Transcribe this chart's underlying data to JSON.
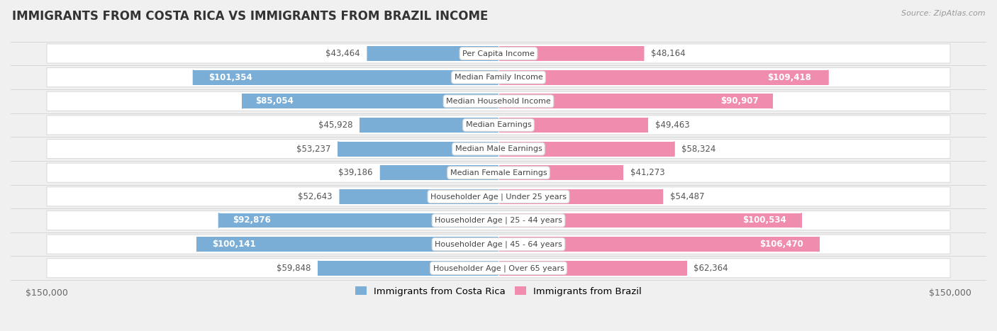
{
  "title": "IMMIGRANTS FROM COSTA RICA VS IMMIGRANTS FROM BRAZIL INCOME",
  "source": "Source: ZipAtlas.com",
  "categories": [
    "Per Capita Income",
    "Median Family Income",
    "Median Household Income",
    "Median Earnings",
    "Median Male Earnings",
    "Median Female Earnings",
    "Householder Age | Under 25 years",
    "Householder Age | 25 - 44 years",
    "Householder Age | 45 - 64 years",
    "Householder Age | Over 65 years"
  ],
  "costa_rica_values": [
    43464,
    101354,
    85054,
    45928,
    53237,
    39186,
    52643,
    92876,
    100141,
    59848
  ],
  "brazil_values": [
    48164,
    109418,
    90907,
    49463,
    58324,
    41273,
    54487,
    100534,
    106470,
    62364
  ],
  "costa_rica_labels": [
    "$43,464",
    "$101,354",
    "$85,054",
    "$45,928",
    "$53,237",
    "$39,186",
    "$52,643",
    "$92,876",
    "$100,141",
    "$59,848"
  ],
  "brazil_labels": [
    "$48,164",
    "$109,418",
    "$90,907",
    "$49,463",
    "$58,324",
    "$41,273",
    "$54,487",
    "$100,534",
    "$106,470",
    "$62,364"
  ],
  "costa_rica_color": "#7aaed6",
  "brazil_color": "#f08cae",
  "costa_rica_color_dark": "#4a86c8",
  "brazil_color_dark": "#e8417a",
  "max_value": 150000,
  "fig_bg": "#f0f0f0",
  "row_bg_light": "#f8f8f8",
  "row_border": "#d8d8d8",
  "legend_costa_rica": "Immigrants from Costa Rica",
  "legend_brazil": "Immigrants from Brazil",
  "title_fontsize": 12,
  "label_fontsize": 8.5,
  "category_fontsize": 8,
  "inside_threshold": 65000
}
